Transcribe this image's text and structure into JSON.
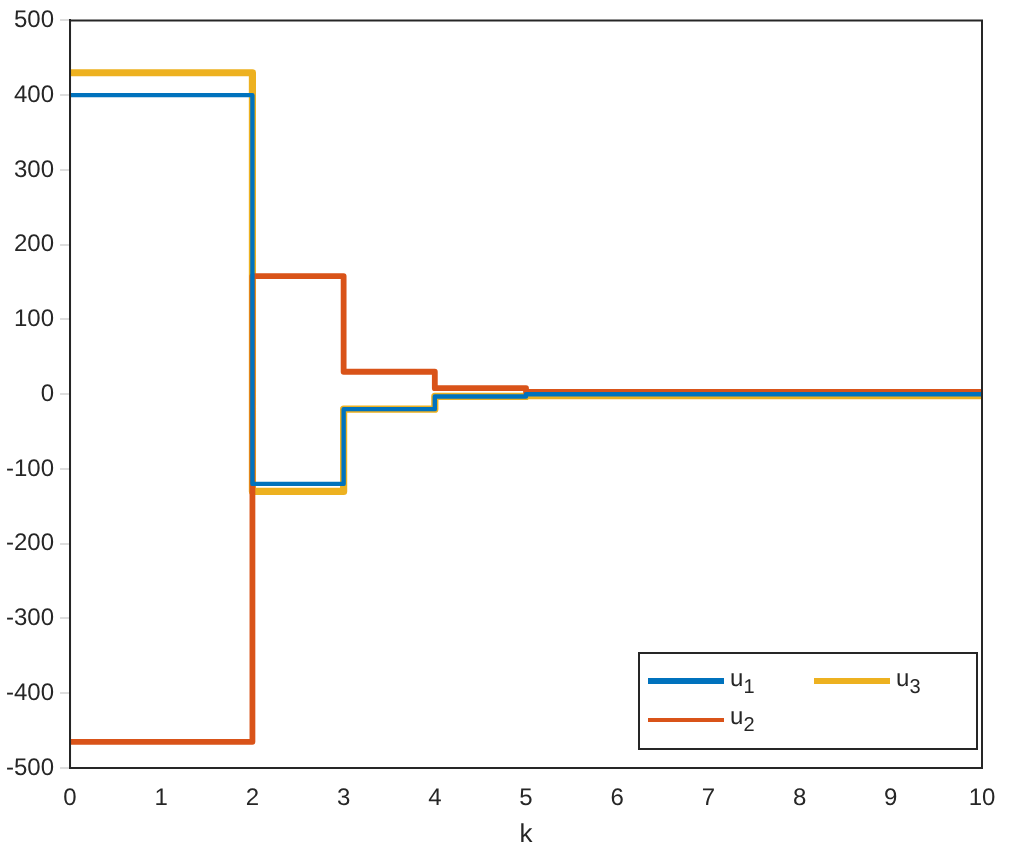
{
  "chart_data": {
    "type": "step",
    "xlabel": "k",
    "x": [
      0,
      1,
      2,
      3,
      4,
      5,
      6,
      7,
      8,
      9,
      10
    ],
    "series": [
      {
        "name": "u$_{1}$",
        "color": "#0072bd",
        "values": [
          400,
          400,
          -120,
          -20,
          -3,
          0,
          0,
          0,
          0,
          0,
          0
        ]
      },
      {
        "name": "u$_{2}$",
        "color": "#d95319",
        "values": [
          -465,
          -465,
          158,
          30,
          8,
          3,
          3,
          3,
          3,
          3,
          3
        ]
      },
      {
        "name": "u$_{3}$",
        "color": "#edb120",
        "values": [
          430,
          430,
          -130,
          -20,
          -3,
          -2,
          -2,
          -2,
          -2,
          -2,
          -2
        ]
      }
    ],
    "xlim": [
      0,
      10
    ],
    "xticks": [
      0,
      1,
      2,
      3,
      4,
      5,
      6,
      7,
      8,
      9,
      10
    ],
    "ylim": [
      -500,
      500
    ],
    "yticks": [
      -500,
      -400,
      -300,
      -200,
      -100,
      0,
      100,
      200,
      300,
      400,
      500
    ],
    "grid": false,
    "legend": "bottom right",
    "line_style": "solid",
    "marker": "none"
  }
}
